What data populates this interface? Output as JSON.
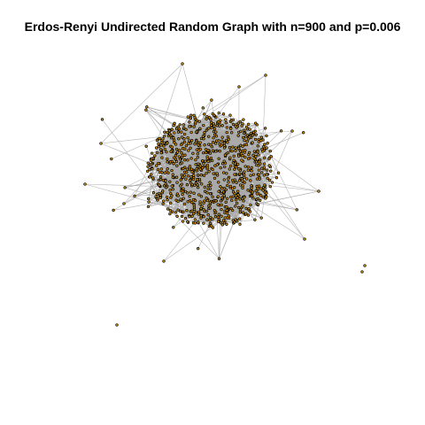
{
  "plot": {
    "title": "Erdos-Renyi Undirected Random Graph with n=900 and p=0.006"
  },
  "graph": {
    "model": "erdos-renyi",
    "directed": false,
    "n": 900,
    "p": 0.006
  },
  "colors": {
    "background": "#ffffff",
    "edge": "#a9a9a9",
    "node_fill": "#e69f00",
    "node_stroke": "#000000",
    "title": "#000000"
  }
}
